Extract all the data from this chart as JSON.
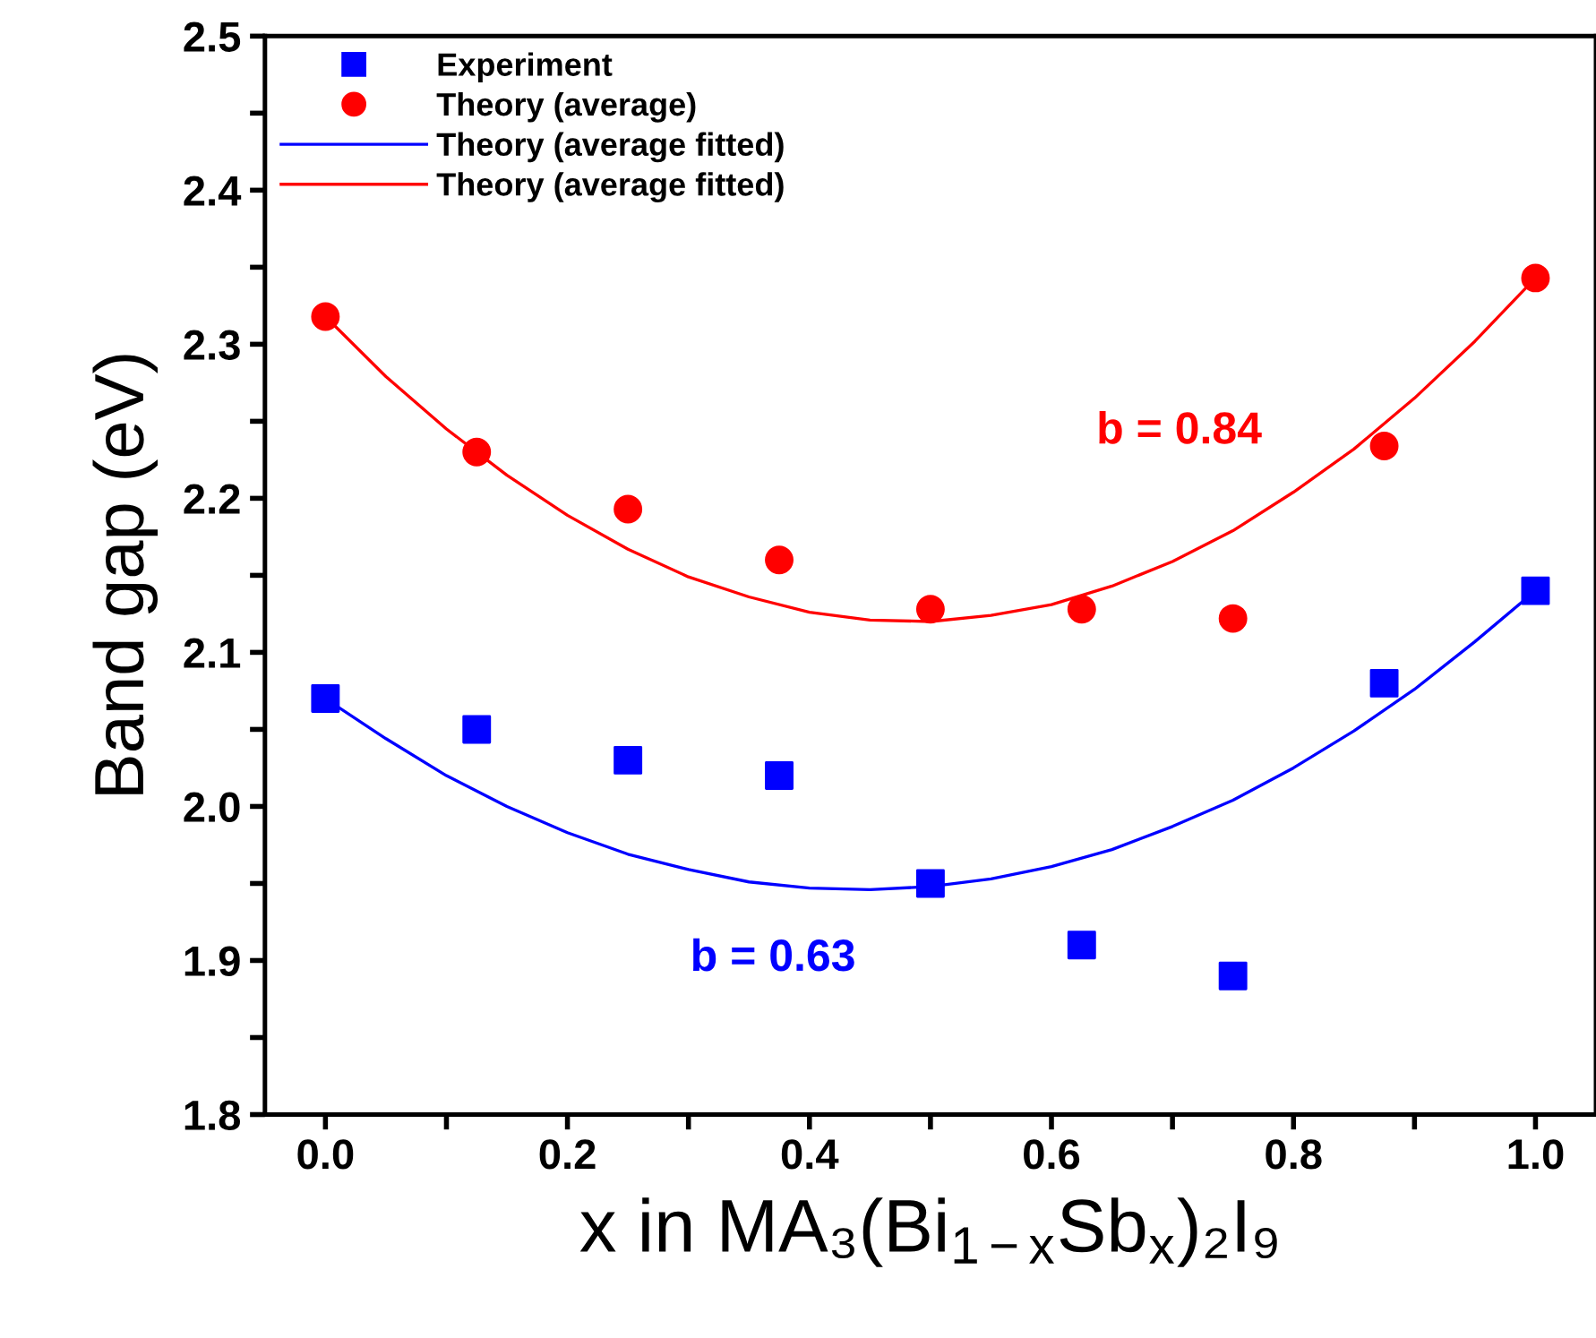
{
  "chart_data": {
    "type": "scatter",
    "xlabel": "x in MA₃(Bi$_{1−x}$Sb$_{x}$)₂I₉",
    "ylabel": "Band gap (eV)",
    "xlim": [
      -0.05,
      1.05
    ],
    "ylim": [
      1.8,
      2.5
    ],
    "xticks": [
      {
        "value": 0,
        "label": "0.0"
      },
      {
        "value": 0.1,
        "label": null
      },
      0.2,
      {
        "value": 0.3,
        "label": null
      },
      0.4,
      {
        "value": 0.5,
        "label": null
      },
      0.6,
      {
        "value": 0.7,
        "label": null
      },
      0.8,
      {
        "value": 0.9,
        "label": null
      },
      {
        "value": 1,
        "label": "1.0"
      }
    ],
    "yticks": [
      1.8,
      {
        "value": 1.85,
        "label": null
      },
      1.9,
      {
        "value": 1.95,
        "label": null
      },
      {
        "value": 2,
        "label": "2.0"
      },
      {
        "value": 2.05,
        "label": null
      },
      2.1,
      {
        "value": 2.15,
        "label": null
      },
      2.2,
      {
        "value": 2.25,
        "label": null
      },
      2.3,
      {
        "value": 2.35,
        "label": null
      },
      2.4,
      {
        "value": 2.45,
        "label": null
      },
      2.5
    ],
    "legend": "top left",
    "grid": false,
    "series": [
      {
        "name": "Experiment",
        "marker": "square",
        "color": "#0000ff",
        "x": [
          0,
          0.125,
          0.25,
          0.375,
          0.5,
          0.625,
          0.75,
          0.875,
          1.0
        ],
        "values": [
          2.07,
          2.05,
          2.03,
          2.02,
          1.95,
          1.91,
          1.89,
          2.08,
          2.14
        ]
      },
      {
        "name": "Theory (average)",
        "marker": "circle",
        "color": "#ff0000",
        "x": [
          0,
          0.125,
          0.25,
          0.375,
          0.5,
          0.625,
          0.75,
          0.875,
          1.0
        ],
        "values": [
          2.318,
          2.23,
          2.193,
          2.16,
          2.128,
          2.128,
          2.122,
          2.234,
          2.343
        ]
      },
      {
        "name": "Theory (average fitted)",
        "type": "line",
        "marker": "none",
        "color": "#0000ff",
        "x": [
          0,
          0.05,
          0.1,
          0.15,
          0.2,
          0.25,
          0.3,
          0.35,
          0.4,
          0.45,
          0.5,
          0.55,
          0.6,
          0.65,
          0.7,
          0.75,
          0.8,
          0.85,
          0.9,
          0.95,
          1.0
        ],
        "values": [
          2.07,
          2.044,
          2.02,
          2.0,
          1.983,
          1.969,
          1.959,
          1.951,
          1.947,
          1.946,
          1.948,
          1.953,
          1.961,
          1.972,
          1.987,
          2.004,
          2.025,
          2.049,
          2.076,
          2.107,
          2.14
        ]
      },
      {
        "name": "Theory (average fitted)",
        "type": "line",
        "marker": "none",
        "color": "#ff0000",
        "x": [
          0,
          0.05,
          0.1,
          0.15,
          0.2,
          0.25,
          0.3,
          0.35,
          0.4,
          0.45,
          0.5,
          0.55,
          0.6,
          0.65,
          0.7,
          0.75,
          0.8,
          0.85,
          0.9,
          0.95,
          1.0
        ],
        "values": [
          2.318,
          2.279,
          2.245,
          2.215,
          2.189,
          2.167,
          2.149,
          2.136,
          2.126,
          2.121,
          2.12,
          2.124,
          2.131,
          2.143,
          2.159,
          2.179,
          2.204,
          2.232,
          2.265,
          2.302,
          2.343
        ]
      }
    ],
    "annotations": [
      "b = 0.63",
      "b = 0.84"
    ]
  }
}
